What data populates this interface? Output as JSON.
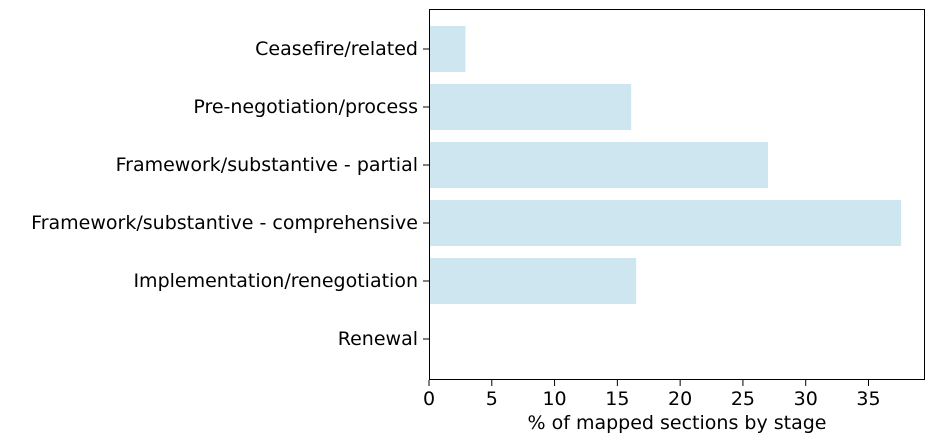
{
  "colors": {
    "bar": "#cde6ef",
    "axis": "#000000",
    "background": "#ffffff"
  },
  "chart_data": {
    "type": "bar",
    "orientation": "horizontal",
    "categories": [
      "Ceasefire/related",
      "Pre-negotiation/process",
      "Framework/substantive - partial",
      "Framework/substantive - comprehensive",
      "Implementation/renegotiation",
      "Renewal"
    ],
    "values": [
      2.9,
      16.1,
      27.0,
      37.6,
      16.5,
      0.0
    ],
    "title": "",
    "xlabel": "% of mapped sections by stage",
    "ylabel": "",
    "xlim": [
      0,
      39.5
    ],
    "xticks": [
      0,
      5,
      10,
      15,
      20,
      25,
      30,
      35
    ],
    "grid": false,
    "legend": "none"
  }
}
